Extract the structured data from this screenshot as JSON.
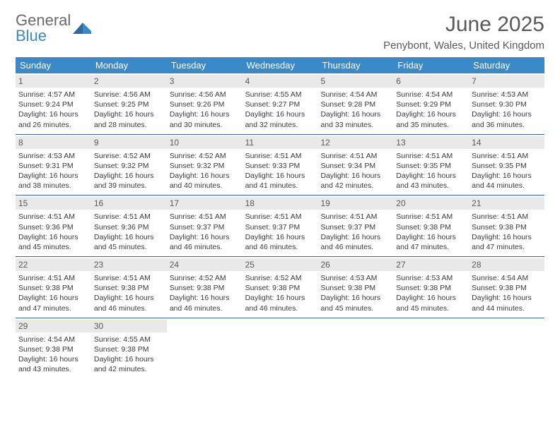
{
  "logo": {
    "line1": "General",
    "line2": "Blue"
  },
  "title": "June 2025",
  "location": "Penybont, Wales, United Kingdom",
  "colors": {
    "header_bg": "#3a8ac9",
    "header_text": "#ffffff",
    "daynum_bg": "#e9e9e9",
    "text": "#5a5a5a",
    "week_border": "#3a6a9a"
  },
  "weekdays": [
    "Sunday",
    "Monday",
    "Tuesday",
    "Wednesday",
    "Thursday",
    "Friday",
    "Saturday"
  ],
  "days": [
    {
      "n": "1",
      "sunrise": "Sunrise: 4:57 AM",
      "sunset": "Sunset: 9:24 PM",
      "daylight": "Daylight: 16 hours and 26 minutes."
    },
    {
      "n": "2",
      "sunrise": "Sunrise: 4:56 AM",
      "sunset": "Sunset: 9:25 PM",
      "daylight": "Daylight: 16 hours and 28 minutes."
    },
    {
      "n": "3",
      "sunrise": "Sunrise: 4:56 AM",
      "sunset": "Sunset: 9:26 PM",
      "daylight": "Daylight: 16 hours and 30 minutes."
    },
    {
      "n": "4",
      "sunrise": "Sunrise: 4:55 AM",
      "sunset": "Sunset: 9:27 PM",
      "daylight": "Daylight: 16 hours and 32 minutes."
    },
    {
      "n": "5",
      "sunrise": "Sunrise: 4:54 AM",
      "sunset": "Sunset: 9:28 PM",
      "daylight": "Daylight: 16 hours and 33 minutes."
    },
    {
      "n": "6",
      "sunrise": "Sunrise: 4:54 AM",
      "sunset": "Sunset: 9:29 PM",
      "daylight": "Daylight: 16 hours and 35 minutes."
    },
    {
      "n": "7",
      "sunrise": "Sunrise: 4:53 AM",
      "sunset": "Sunset: 9:30 PM",
      "daylight": "Daylight: 16 hours and 36 minutes."
    },
    {
      "n": "8",
      "sunrise": "Sunrise: 4:53 AM",
      "sunset": "Sunset: 9:31 PM",
      "daylight": "Daylight: 16 hours and 38 minutes."
    },
    {
      "n": "9",
      "sunrise": "Sunrise: 4:52 AM",
      "sunset": "Sunset: 9:32 PM",
      "daylight": "Daylight: 16 hours and 39 minutes."
    },
    {
      "n": "10",
      "sunrise": "Sunrise: 4:52 AM",
      "sunset": "Sunset: 9:32 PM",
      "daylight": "Daylight: 16 hours and 40 minutes."
    },
    {
      "n": "11",
      "sunrise": "Sunrise: 4:51 AM",
      "sunset": "Sunset: 9:33 PM",
      "daylight": "Daylight: 16 hours and 41 minutes."
    },
    {
      "n": "12",
      "sunrise": "Sunrise: 4:51 AM",
      "sunset": "Sunset: 9:34 PM",
      "daylight": "Daylight: 16 hours and 42 minutes."
    },
    {
      "n": "13",
      "sunrise": "Sunrise: 4:51 AM",
      "sunset": "Sunset: 9:35 PM",
      "daylight": "Daylight: 16 hours and 43 minutes."
    },
    {
      "n": "14",
      "sunrise": "Sunrise: 4:51 AM",
      "sunset": "Sunset: 9:35 PM",
      "daylight": "Daylight: 16 hours and 44 minutes."
    },
    {
      "n": "15",
      "sunrise": "Sunrise: 4:51 AM",
      "sunset": "Sunset: 9:36 PM",
      "daylight": "Daylight: 16 hours and 45 minutes."
    },
    {
      "n": "16",
      "sunrise": "Sunrise: 4:51 AM",
      "sunset": "Sunset: 9:36 PM",
      "daylight": "Daylight: 16 hours and 45 minutes."
    },
    {
      "n": "17",
      "sunrise": "Sunrise: 4:51 AM",
      "sunset": "Sunset: 9:37 PM",
      "daylight": "Daylight: 16 hours and 46 minutes."
    },
    {
      "n": "18",
      "sunrise": "Sunrise: 4:51 AM",
      "sunset": "Sunset: 9:37 PM",
      "daylight": "Daylight: 16 hours and 46 minutes."
    },
    {
      "n": "19",
      "sunrise": "Sunrise: 4:51 AM",
      "sunset": "Sunset: 9:37 PM",
      "daylight": "Daylight: 16 hours and 46 minutes."
    },
    {
      "n": "20",
      "sunrise": "Sunrise: 4:51 AM",
      "sunset": "Sunset: 9:38 PM",
      "daylight": "Daylight: 16 hours and 47 minutes."
    },
    {
      "n": "21",
      "sunrise": "Sunrise: 4:51 AM",
      "sunset": "Sunset: 9:38 PM",
      "daylight": "Daylight: 16 hours and 47 minutes."
    },
    {
      "n": "22",
      "sunrise": "Sunrise: 4:51 AM",
      "sunset": "Sunset: 9:38 PM",
      "daylight": "Daylight: 16 hours and 47 minutes."
    },
    {
      "n": "23",
      "sunrise": "Sunrise: 4:51 AM",
      "sunset": "Sunset: 9:38 PM",
      "daylight": "Daylight: 16 hours and 46 minutes."
    },
    {
      "n": "24",
      "sunrise": "Sunrise: 4:52 AM",
      "sunset": "Sunset: 9:38 PM",
      "daylight": "Daylight: 16 hours and 46 minutes."
    },
    {
      "n": "25",
      "sunrise": "Sunrise: 4:52 AM",
      "sunset": "Sunset: 9:38 PM",
      "daylight": "Daylight: 16 hours and 46 minutes."
    },
    {
      "n": "26",
      "sunrise": "Sunrise: 4:53 AM",
      "sunset": "Sunset: 9:38 PM",
      "daylight": "Daylight: 16 hours and 45 minutes."
    },
    {
      "n": "27",
      "sunrise": "Sunrise: 4:53 AM",
      "sunset": "Sunset: 9:38 PM",
      "daylight": "Daylight: 16 hours and 45 minutes."
    },
    {
      "n": "28",
      "sunrise": "Sunrise: 4:54 AM",
      "sunset": "Sunset: 9:38 PM",
      "daylight": "Daylight: 16 hours and 44 minutes."
    },
    {
      "n": "29",
      "sunrise": "Sunrise: 4:54 AM",
      "sunset": "Sunset: 9:38 PM",
      "daylight": "Daylight: 16 hours and 43 minutes."
    },
    {
      "n": "30",
      "sunrise": "Sunrise: 4:55 AM",
      "sunset": "Sunset: 9:38 PM",
      "daylight": "Daylight: 16 hours and 42 minutes."
    }
  ]
}
